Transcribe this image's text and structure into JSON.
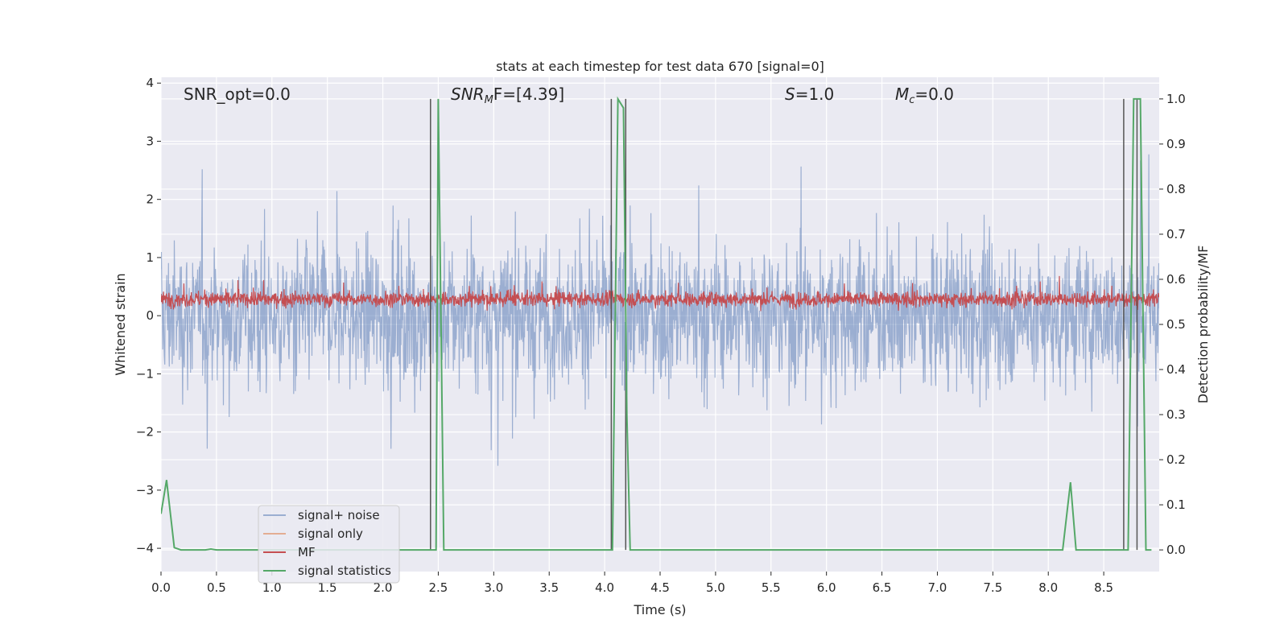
{
  "chart_data": {
    "type": "line",
    "title": "stats at each timestep for test data 670 [signal=0]",
    "xlabel": "Time (s)",
    "ylabel_left": "Whitened strain",
    "ylabel_right": "Detection probability/MF",
    "xlim": [
      0.0,
      9.0
    ],
    "ylim_left": [
      -4.4,
      4.1
    ],
    "ylim_right": [
      -0.048,
      1.048
    ],
    "x_ticks": [
      0.0,
      0.5,
      1.0,
      1.5,
      2.0,
      2.5,
      3.0,
      3.5,
      4.0,
      4.5,
      5.0,
      5.5,
      6.0,
      6.5,
      7.0,
      7.5,
      8.0,
      8.5
    ],
    "x_tick_labels": [
      "0.0",
      "0.5",
      "1.0",
      "1.5",
      "2.0",
      "2.5",
      "3.0",
      "3.5",
      "4.0",
      "4.5",
      "5.0",
      "5.5",
      "6.0",
      "6.5",
      "7.0",
      "7.5",
      "8.0",
      "8.5"
    ],
    "y_left_ticks": [
      -4,
      -3,
      -2,
      -1,
      0,
      1,
      2,
      3,
      4
    ],
    "y_left_tick_labels": [
      "−4",
      "−3",
      "−2",
      "−1",
      "0",
      "1",
      "2",
      "3",
      "4"
    ],
    "y_right_ticks": [
      0.0,
      0.1,
      0.2,
      0.3,
      0.4,
      0.5,
      0.6,
      0.7,
      0.8,
      0.9,
      1.0
    ],
    "y_right_tick_labels": [
      "0.0",
      "0.1",
      "0.2",
      "0.3",
      "0.4",
      "0.5",
      "0.6",
      "0.7",
      "0.8",
      "0.9",
      "1.0"
    ],
    "grid": true,
    "legend_position": "lower-left",
    "annotations": {
      "snr_opt": "SNR_opt=0.0",
      "snr_mf_name": "SNR",
      "snr_mf_sub": "M",
      "snr_mf_tail": "F=[4.39]",
      "s_name": "S",
      "s_value": "=1.0",
      "mc_name": "M",
      "mc_sub": "c",
      "mc_value": "=0.0"
    },
    "series": [
      {
        "name": "signal+ noise",
        "color": "#4c72b0",
        "axis": "left",
        "style": "noise band, roughly between -1.8 and 1.8 with spikes to about ±3"
      },
      {
        "name": "signal only",
        "color": "#dd8452",
        "axis": "left",
        "values": []
      },
      {
        "name": "MF",
        "color": "#c44e52",
        "axis": "right",
        "style": "noise band, roughly between 0.52 and 0.6 on right axis"
      },
      {
        "name": "signal statistics",
        "color": "#55a868",
        "axis": "right",
        "x": [
          0.0,
          0.05,
          0.12,
          0.18,
          0.4,
          0.45,
          0.5,
          2.43,
          2.48,
          2.5,
          2.55,
          2.6,
          4.07,
          4.12,
          4.17,
          4.2,
          4.23,
          4.27,
          4.3,
          8.13,
          8.2,
          8.25,
          8.3,
          8.72,
          8.77,
          8.83,
          8.88,
          8.93
        ],
        "y": [
          0.08,
          0.155,
          0.005,
          0.0,
          0.0,
          0.002,
          0.0,
          0.0,
          0.0,
          1.0,
          0.0,
          0.0,
          0.0,
          1.0,
          0.98,
          0.3,
          0.0,
          0.0,
          0.0,
          0.0,
          0.15,
          0.0,
          0.0,
          0.0,
          1.0,
          1.0,
          0.0,
          0.0
        ]
      }
    ],
    "vertical_markers_x": [
      2.43,
      4.06,
      4.19,
      8.68,
      8.8
    ]
  }
}
